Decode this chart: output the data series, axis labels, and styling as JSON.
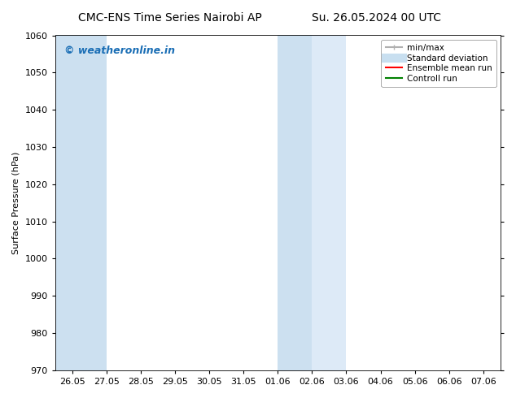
{
  "title_left": "CMC-ENS Time Series Nairobi AP",
  "title_right": "Su. 26.05.2024 00 UTC",
  "ylabel": "Surface Pressure (hPa)",
  "ylim": [
    970,
    1060
  ],
  "yticks": [
    970,
    980,
    990,
    1000,
    1010,
    1020,
    1030,
    1040,
    1050,
    1060
  ],
  "xtick_positions": [
    0,
    1,
    2,
    3,
    4,
    5,
    6,
    7,
    8,
    9,
    10,
    11,
    12
  ],
  "xtick_labels": [
    "26.05",
    "27.05",
    "28.05",
    "29.05",
    "30.05",
    "31.05",
    "01.06",
    "02.06",
    "03.06",
    "04.06",
    "05.06",
    "06.06",
    "07.06"
  ],
  "xlim": [
    -0.5,
    12.5
  ],
  "shaded_regions": [
    {
      "x_start": -0.5,
      "x_end": 1.0,
      "color": "#cce0f0"
    },
    {
      "x_start": 6.0,
      "x_end": 7.0,
      "color": "#cce0f0"
    },
    {
      "x_start": 7.0,
      "x_end": 8.0,
      "color": "#ddeaf7"
    }
  ],
  "watermark_text": "© weatheronline.in",
  "watermark_color": "#1a6eb5",
  "background_color": "#ffffff",
  "legend_items": [
    {
      "label": "min/max",
      "color": "#b0b0b0",
      "lw": 1.5,
      "style": "line_with_caps"
    },
    {
      "label": "Standard deviation",
      "color": "#c8dff0",
      "lw": 8,
      "style": "solid"
    },
    {
      "label": "Ensemble mean run",
      "color": "#ff0000",
      "lw": 1.5,
      "style": "solid"
    },
    {
      "label": "Controll run",
      "color": "#008000",
      "lw": 1.5,
      "style": "solid"
    }
  ],
  "title_fontsize": 10,
  "axis_fontsize": 8,
  "tick_fontsize": 8,
  "legend_fontsize": 7.5
}
